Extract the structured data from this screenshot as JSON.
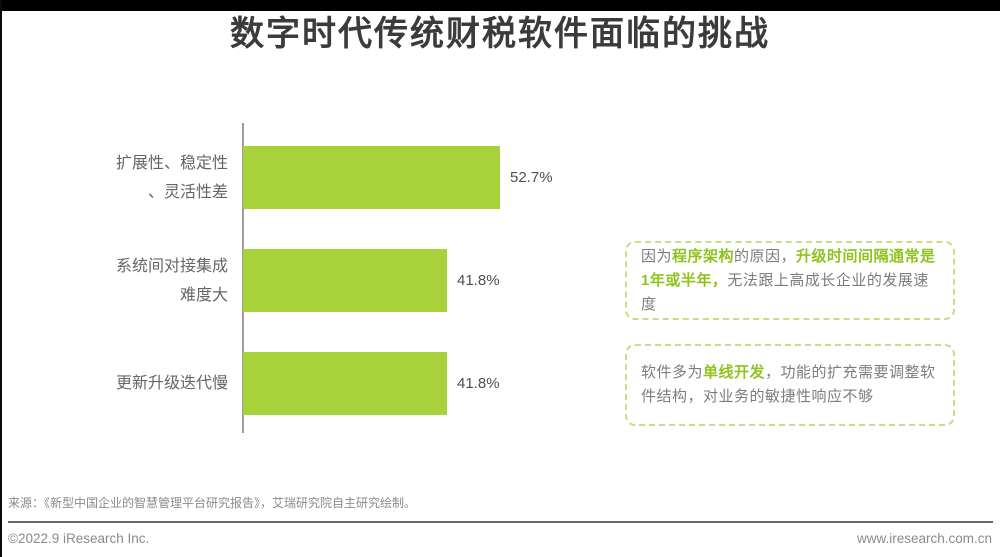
{
  "page": {
    "title": "数字时代传统财税软件面临的挑战",
    "source": "来源：《新型中国企业的智慧管理平台研究报告》，艾瑞研究院自主研究绘制。",
    "footer_left": "©2022.9 iResearch Inc.",
    "footer_right": "www.iresearch.com.cn"
  },
  "colors": {
    "bar": "#a8d23a",
    "accent_green": "#8fc31f",
    "box_border": "#c6de85",
    "title_text": "#3b3b3b",
    "label_text": "#666666",
    "annotation_text": "#7d7d7d"
  },
  "chart_data": {
    "type": "bar",
    "orientation": "horizontal",
    "title": "数字时代传统财税软件面临的挑战",
    "categories": [
      "扩展性、稳定性、灵活性差",
      "系统间对接集成难度大",
      "更新升级迭代慢"
    ],
    "category_lines": [
      [
        "扩展性、稳定性",
        "、灵活性差"
      ],
      [
        "系统间对接集成",
        "难度大"
      ],
      [
        "更新升级迭代慢"
      ]
    ],
    "values": [
      52.7,
      41.8,
      41.8
    ],
    "value_labels": [
      "52.7%",
      "41.8%",
      "41.8%"
    ],
    "unit": "%",
    "xlim": [
      0,
      60
    ],
    "xlabel": "",
    "ylabel": "",
    "grid": false,
    "legend": false
  },
  "annotations": [
    {
      "segments": [
        {
          "text": "因为",
          "highlight": false
        },
        {
          "text": "程序架构",
          "highlight": true
        },
        {
          "text": "的原因，",
          "highlight": false
        },
        {
          "text": "升级时间间隔通常是1年或半年，",
          "highlight": true
        },
        {
          "text": "无法跟上高成长企业的发展速度",
          "highlight": false
        }
      ]
    },
    {
      "segments": [
        {
          "text": "软件多为",
          "highlight": false
        },
        {
          "text": "单线开发",
          "highlight": true
        },
        {
          "text": "，功能的扩充需要调整软件结构，对业务的敏捷性响应不够",
          "highlight": false
        }
      ]
    }
  ]
}
